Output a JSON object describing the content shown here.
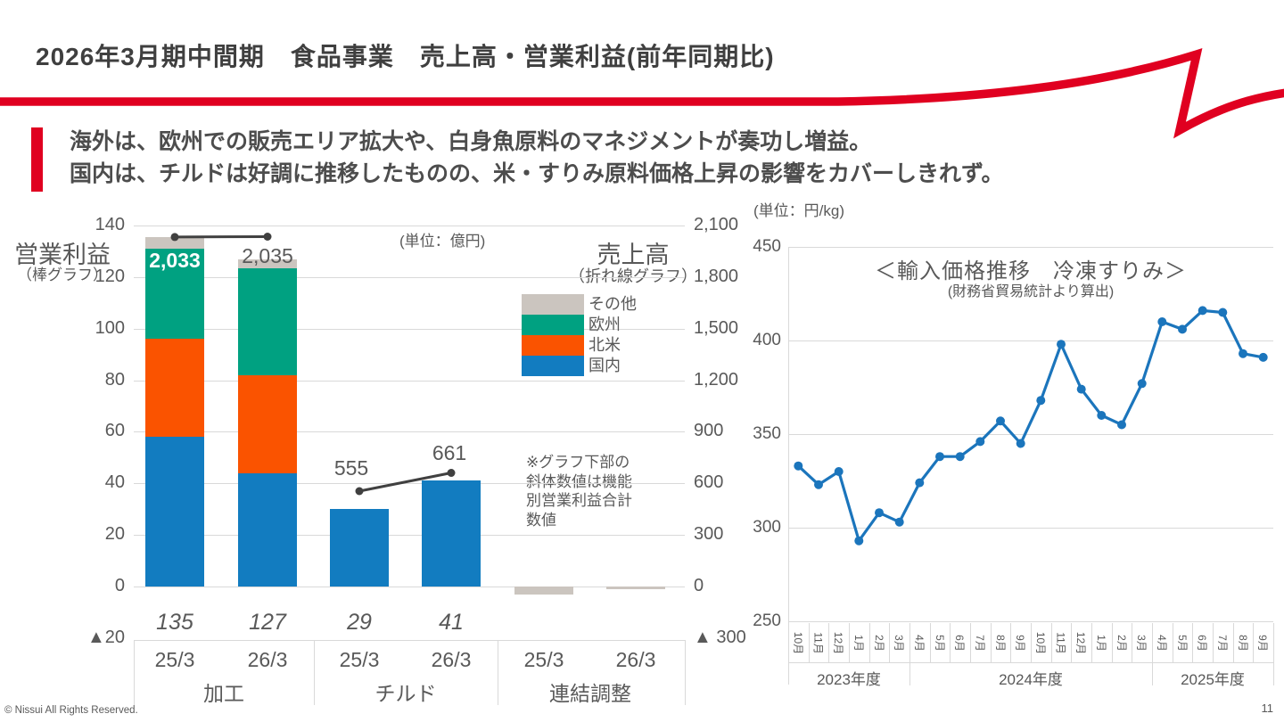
{
  "slide": {
    "title": "2026年3月期中間期　食品事業　売上高・営業利益(前年同期比)",
    "bullet": {
      "line1": "海外は、欧州での販売エリア拡大や、白身魚原料のマネジメントが奏功し増益。",
      "line2": "国内は、チルドは好調に推移したものの、米・すりみ原料価格上昇の影響をカバーしきれず。"
    },
    "footer": "© Nissui All Rights Reserved.",
    "page_number": "11"
  },
  "colors": {
    "accent_red": "#E00020",
    "domestic_blue": "#127CC0",
    "north_america_orange": "#FA5300",
    "europe_teal": "#00A181",
    "other_gray": "#CBC5BF",
    "profit_line_dark": "#404040",
    "price_line_blue": "#1B75BC",
    "text_gray": "#595959",
    "grid_gray": "#D9D9D9"
  },
  "chart_data": [
    {
      "type": "bar",
      "variant": "stacked-bars-with-sales-line",
      "unit_label": "(単位：億円)",
      "left_axis": {
        "title": "営業利益",
        "subtitle": "（棒グラフ）",
        "ylim": [
          -20,
          140
        ],
        "ticks": [
          "140",
          "120",
          "100",
          "80",
          "60",
          "40",
          "20",
          "0"
        ],
        "tick_values": [
          140,
          120,
          100,
          80,
          60,
          40,
          20,
          0
        ],
        "negative_tick": "▲20"
      },
      "right_axis": {
        "title": "売上高",
        "subtitle": "（折れ線グラフ）",
        "ylim": [
          -300,
          2100
        ],
        "ticks": [
          "2,100",
          "1,800",
          "1,500",
          "1,200",
          "900",
          "600",
          "300",
          "0"
        ],
        "negative_tick": "▲ 300"
      },
      "legend": [
        {
          "key": "other",
          "label": "その他"
        },
        {
          "key": "europe",
          "label": "欧州"
        },
        {
          "key": "north_america",
          "label": "北米"
        },
        {
          "key": "domestic",
          "label": "国内"
        }
      ],
      "stack_order": [
        "domestic",
        "north_america",
        "europe",
        "other"
      ],
      "note": "※グラフ下部の\n斜体数値は機能\n別営業利益合計\n数値",
      "groups": [
        {
          "label": "加工",
          "columns": [
            {
              "period": "25/3",
              "profit_total": "135",
              "segments": {
                "domestic": 58,
                "north_america": 38,
                "europe": 35,
                "other": 4.5
              },
              "sales": 2033,
              "sales_label": "2,033"
            },
            {
              "period": "26/3",
              "profit_total": "127",
              "segments": {
                "domestic": 44,
                "north_america": 38,
                "europe": 41.5,
                "other": 3.5
              },
              "sales": 2035,
              "sales_label": "2,035"
            }
          ]
        },
        {
          "label": "チルド",
          "columns": [
            {
              "period": "25/3",
              "profit_total": "29",
              "segments": {
                "domestic": 30
              },
              "sales": 555,
              "sales_label": "555"
            },
            {
              "period": "26/3",
              "profit_total": "41",
              "segments": {
                "domestic": 41
              },
              "sales": 661,
              "sales_label": "661"
            }
          ]
        },
        {
          "label": "連結調整",
          "columns": [
            {
              "period": "25/3",
              "segments": {
                "other": -3
              }
            },
            {
              "period": "26/3",
              "segments": {
                "other": -1
              }
            }
          ]
        }
      ]
    },
    {
      "type": "line",
      "title": "＜輸入価格推移　冷凍すりみ＞",
      "subtitle": "(財務省貿易統計より算出)",
      "unit_label": "(単位：円/kg)",
      "ylim": [
        250,
        450
      ],
      "yticks": [
        "450",
        "400",
        "350",
        "300",
        "250"
      ],
      "ytick_values": [
        450,
        400,
        350,
        300,
        250
      ],
      "x_groups": [
        {
          "label": "2023年度",
          "months": [
            "10月",
            "11月",
            "12月",
            "1月",
            "2月",
            "3月"
          ]
        },
        {
          "label": "2024年度",
          "months": [
            "4月",
            "5月",
            "6月",
            "7月",
            "8月",
            "9月",
            "10月",
            "11月",
            "12月",
            "1月",
            "2月",
            "3月"
          ]
        },
        {
          "label": "2025年度",
          "months": [
            "4月",
            "5月",
            "6月",
            "7月",
            "8月",
            "9月"
          ]
        }
      ],
      "values": [
        333,
        323,
        330,
        293,
        308,
        303,
        324,
        338,
        338,
        346,
        357,
        345,
        368,
        398,
        374,
        360,
        355,
        377,
        410,
        406,
        416,
        415,
        393,
        391
      ]
    }
  ]
}
